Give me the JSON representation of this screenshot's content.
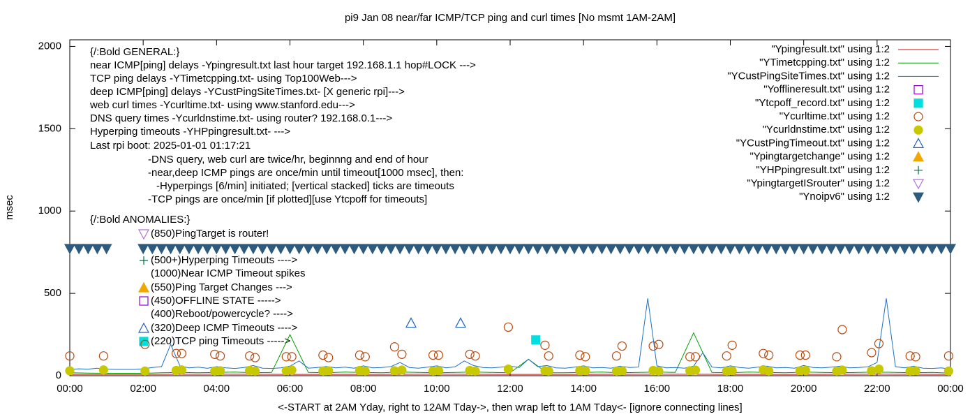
{
  "chart_data": {
    "type": "line",
    "title": "pi9 Jan 08  near/far ICMP/TCP ping and curl times [No msmt 1AM-2AM]",
    "xlabel": "<-START at 2AM Yday, right to 12AM Tday->, then wrap left to 1AM Tday<- [ignore connecting lines]",
    "ylabel": "msec",
    "xlim": [
      0,
      24
    ],
    "ylim": [
      0,
      2040
    ],
    "xticks": [
      {
        "value": 0,
        "label": "00:00"
      },
      {
        "value": 2,
        "label": "02:00"
      },
      {
        "value": 4,
        "label": "04:00"
      },
      {
        "value": 6,
        "label": "06:00"
      },
      {
        "value": 8,
        "label": "08:00"
      },
      {
        "value": 10,
        "label": "10:00"
      },
      {
        "value": 12,
        "label": "12:00"
      },
      {
        "value": 14,
        "label": "14:00"
      },
      {
        "value": 16,
        "label": "16:00"
      },
      {
        "value": 18,
        "label": "18:00"
      },
      {
        "value": 20,
        "label": "20:00"
      },
      {
        "value": 22,
        "label": "22:00"
      },
      {
        "value": 24,
        "label": "00:00"
      }
    ],
    "yticks": [
      0,
      500,
      1000,
      1500,
      2000
    ],
    "legend": "top-right",
    "annotations": [
      "{/:Bold GENERAL:}",
      "near ICMP[ping] delays -Ypingresult.txt last hour target 192.168.1.1 hop#LOCK --->",
      "TCP ping delays -YTimetcpping.txt- using Top100Web--->",
      "deep ICMP[ping] delays -YCustPingSiteTimes.txt- [X generic rpi]--->",
      "web curl times -Ycurltime.txt- using www.stanford.edu--->",
      "DNS query times -Ycurldnstime.txt- using router? 192.168.0.1--->",
      "Hyperping timeouts -YHPpingresult.txt- --->",
      "Last rpi boot: 2025-01-01 01:17:21",
      "-DNS query, web curl are twice/hr, beginnng and end of hour",
      "-near,deep ICMP pings are once/min until timeout[1000 msec], then:",
      "-Hyperpings [6/min] initiated; [vertical stacked] ticks are timeouts",
      "-TCP pings are once/min [if plotted][use Ytcpoff for timeouts]",
      "{/:Bold ANOMALIES:}",
      "(850)PingTarget is router!",
      "(500+)Hyperping Timeouts ---->",
      "(1000)Near ICMP Timeout spikes",
      "(550)Ping Target Changes --->",
      "(450)OFFLINE STATE ----->",
      "(400)Reboot/powercycle? ---->",
      "(320)Deep ICMP Timeouts ---->",
      "(220)TCP ping Timeouts ----->"
    ],
    "series": [
      {
        "name": "\"Ypingresult.txt\" using 1:2",
        "color": "#cc1010",
        "style": "line",
        "x": [
          0,
          2,
          4,
          6,
          8,
          10,
          12,
          14,
          16,
          18,
          20,
          22,
          24
        ],
        "values": [
          8,
          8,
          9,
          8,
          8,
          9,
          8,
          8,
          9,
          8,
          8,
          9,
          8
        ]
      },
      {
        "name": "\"YTimetcpping.txt\" using 1:2",
        "color": "#00a000",
        "style": "line",
        "x": [
          0,
          0.5,
          1,
          1.5,
          2,
          2.5,
          3,
          3.5,
          4,
          4.5,
          5,
          5.5,
          6,
          6.5,
          7,
          7.5,
          8,
          8.5,
          9,
          9.5,
          10,
          10.5,
          11,
          11.5,
          12,
          12.5,
          13,
          13.5,
          14,
          14.5,
          15,
          15.5,
          16,
          16.5,
          17,
          17.5,
          18,
          18.5,
          19,
          19.5,
          20,
          20.5,
          21,
          21.5,
          22,
          22.5,
          23,
          23.5,
          24
        ],
        "values": [
          18,
          16,
          15,
          15,
          15,
          18,
          20,
          18,
          20,
          22,
          18,
          20,
          250,
          20,
          18,
          22,
          20,
          18,
          22,
          20,
          18,
          20,
          22,
          20,
          18,
          100,
          18,
          18,
          20,
          22,
          18,
          20,
          22,
          20,
          260,
          20,
          18,
          22,
          20,
          18,
          22,
          20,
          18,
          20,
          22,
          20,
          18,
          20,
          16
        ]
      },
      {
        "name": "\"YCustPingSiteTimes.txt\" using 1:2",
        "color": "#1a70c8",
        "style": "line",
        "x": [
          0,
          0.25,
          0.5,
          0.75,
          1,
          1.25,
          1.5,
          1.75,
          2,
          2.25,
          2.5,
          2.75,
          3,
          3.25,
          3.5,
          3.75,
          4,
          4.25,
          4.5,
          4.75,
          5,
          5.25,
          5.5,
          5.75,
          6,
          6.25,
          6.5,
          6.75,
          7,
          7.25,
          7.5,
          7.75,
          8,
          8.25,
          8.5,
          8.75,
          9,
          9.25,
          9.5,
          9.75,
          10,
          10.25,
          10.5,
          10.75,
          11,
          11.25,
          11.5,
          11.75,
          12,
          12.25,
          12.5,
          12.75,
          13,
          13.25,
          13.5,
          13.75,
          14,
          14.25,
          14.5,
          14.75,
          15,
          15.25,
          15.5,
          15.75,
          16,
          16.25,
          16.5,
          16.75,
          17,
          17.25,
          17.5,
          17.75,
          18,
          18.25,
          18.5,
          18.75,
          19,
          19.25,
          19.5,
          19.75,
          20,
          20.25,
          20.5,
          20.75,
          21,
          21.25,
          21.5,
          21.75,
          22,
          22.25,
          22.5,
          22.75,
          23,
          23.25,
          23.5,
          23.75,
          24
        ],
        "values": [
          38,
          42,
          40,
          46,
          40,
          38,
          38,
          38,
          42,
          50,
          55,
          190,
          60,
          48,
          52,
          45,
          55,
          48,
          44,
          50,
          62,
          46,
          44,
          48,
          58,
          90,
          46,
          50,
          56,
          48,
          52,
          46,
          60,
          48,
          50,
          55,
          80,
          50,
          46,
          52,
          60,
          48,
          54,
          90,
          62,
          50,
          48,
          52,
          58,
          50,
          100,
          55,
          62,
          48,
          46,
          52,
          60,
          48,
          50,
          46,
          58,
          50,
          52,
          470,
          60,
          48,
          50,
          46,
          58,
          140,
          52,
          48,
          60,
          50,
          46,
          52,
          58,
          48,
          50,
          46,
          62,
          50,
          48,
          52,
          58,
          48,
          50,
          54,
          80,
          470,
          55,
          48,
          58,
          46,
          44,
          48,
          40
        ]
      },
      {
        "name": "\"Yofflineresult.txt\" using 1:2",
        "color": "#9400d3",
        "style": "square-open",
        "x": [],
        "values": []
      },
      {
        "name": "\"Ytcpoff_record.txt\" using 1:2",
        "color": "#00dede",
        "style": "square",
        "x": [
          12.7
        ],
        "values": [
          217
        ]
      },
      {
        "name": "\"Ycurltime.txt\" using 1:2",
        "color": "#b8480c",
        "style": "circle-open",
        "x": [
          0,
          0.92,
          2.05,
          2.9,
          3.05,
          3.95,
          4.1,
          4.9,
          5.05,
          5.9,
          6.05,
          6.9,
          7.05,
          7.9,
          8.05,
          8.85,
          9.05,
          9.9,
          10.05,
          10.9,
          11.05,
          11.95,
          12.95,
          13.05,
          13.9,
          14.05,
          14.9,
          15.05,
          15.9,
          16.05,
          16.9,
          17.05,
          17.9,
          18.05,
          18.9,
          19.05,
          19.9,
          20.05,
          20.9,
          21.05,
          21.85,
          22.05,
          22.9,
          23.05,
          23.95
        ],
        "values": [
          120,
          120,
          190,
          135,
          135,
          130,
          120,
          120,
          110,
          115,
          115,
          125,
          110,
          125,
          115,
          175,
          130,
          125,
          125,
          130,
          120,
          295,
          185,
          120,
          125,
          115,
          120,
          180,
          180,
          190,
          115,
          115,
          120,
          185,
          135,
          125,
          125,
          125,
          115,
          280,
          140,
          195,
          120,
          115,
          120
        ]
      },
      {
        "name": "\"Ycurldnstime.txt\" using 1:2",
        "color": "#c8c800",
        "style": "circle",
        "x": [
          0,
          0.92,
          2.05,
          2.9,
          3.05,
          3.95,
          4.1,
          4.9,
          5.05,
          5.9,
          6.05,
          6.9,
          7.05,
          7.9,
          8.05,
          8.85,
          9.05,
          9.9,
          10.05,
          10.9,
          11.05,
          11.95,
          12.95,
          13.05,
          13.9,
          14.05,
          14.9,
          15.05,
          15.9,
          16.05,
          16.9,
          17.05,
          17.9,
          18.05,
          18.9,
          19.05,
          19.9,
          20.05,
          20.9,
          21.05,
          21.85,
          22.05,
          22.9,
          23.05,
          23.95
        ],
        "values": [
          30,
          35,
          28,
          32,
          35,
          28,
          30,
          32,
          28,
          30,
          34,
          28,
          30,
          32,
          28,
          30,
          34,
          28,
          30,
          32,
          28,
          40,
          30,
          28,
          32,
          30,
          28,
          30,
          32,
          28,
          30,
          34,
          28,
          30,
          36,
          28,
          30,
          32,
          28,
          34,
          30,
          40,
          28,
          30,
          28
        ]
      },
      {
        "name": "\"YCustPingTimeout.txt\" using 1:2",
        "color": "#1f5fbf",
        "style": "triangle-open",
        "x": [
          9.3,
          10.65
        ],
        "values": [
          320,
          320
        ]
      },
      {
        "name": "\"Ypingtargetchange\" using 1:2",
        "color": "#f0a800",
        "style": "triangle",
        "x": [],
        "values": []
      },
      {
        "name": "\"YHPpingresult.txt\" using 1:2",
        "color": "#007040",
        "style": "plus",
        "x": [],
        "values": []
      },
      {
        "name": "\"YpingtargetISrouter\" using 1:2",
        "color": "#b070e0",
        "style": "triangle-down-open",
        "x": [],
        "values": []
      },
      {
        "name": "\"Ynoipv6\" using 1:2",
        "color": "#2e5b7d",
        "style": "triangle-down",
        "x": [
          0,
          0.25,
          0.5,
          0.75,
          1,
          2,
          2.25,
          2.5,
          2.75,
          3,
          3.25,
          3.5,
          3.75,
          4,
          4.25,
          4.5,
          4.75,
          5,
          5.25,
          5.5,
          5.75,
          6,
          6.25,
          6.5,
          6.75,
          7,
          7.25,
          7.5,
          7.75,
          8,
          8.25,
          8.5,
          8.75,
          9,
          9.25,
          9.5,
          9.75,
          10,
          10.25,
          10.5,
          10.75,
          11,
          11.25,
          11.5,
          11.75,
          12,
          12.25,
          12.5,
          12.75,
          13,
          13.25,
          13.5,
          13.75,
          14,
          14.25,
          14.5,
          14.75,
          15,
          15.25,
          15.5,
          15.75,
          16,
          16.25,
          16.5,
          16.75,
          17,
          17.25,
          17.5,
          17.75,
          18,
          18.25,
          18.5,
          18.75,
          19,
          19.25,
          19.5,
          19.75,
          20,
          20.25,
          20.5,
          20.75,
          21,
          21.25,
          21.5,
          21.75,
          22,
          22.25,
          22.5,
          22.75,
          23,
          23.25,
          23.5,
          23.75,
          24
        ],
        "values": [
          772,
          772,
          772,
          772,
          772,
          772,
          772,
          772,
          772,
          772,
          772,
          772,
          772,
          772,
          772,
          772,
          772,
          772,
          772,
          772,
          772,
          772,
          772,
          772,
          772,
          772,
          772,
          772,
          772,
          772,
          772,
          772,
          772,
          772,
          772,
          772,
          772,
          772,
          772,
          772,
          772,
          772,
          772,
          772,
          772,
          772,
          772,
          772,
          772,
          772,
          772,
          772,
          772,
          772,
          772,
          772,
          772,
          772,
          772,
          772,
          772,
          772,
          772,
          772,
          772,
          772,
          772,
          772,
          772,
          772,
          772,
          772,
          772,
          772,
          772,
          772,
          772,
          772,
          772,
          772,
          772,
          772,
          772,
          772,
          772,
          772,
          772,
          772,
          772,
          772,
          772,
          772,
          772,
          772
        ]
      }
    ]
  }
}
